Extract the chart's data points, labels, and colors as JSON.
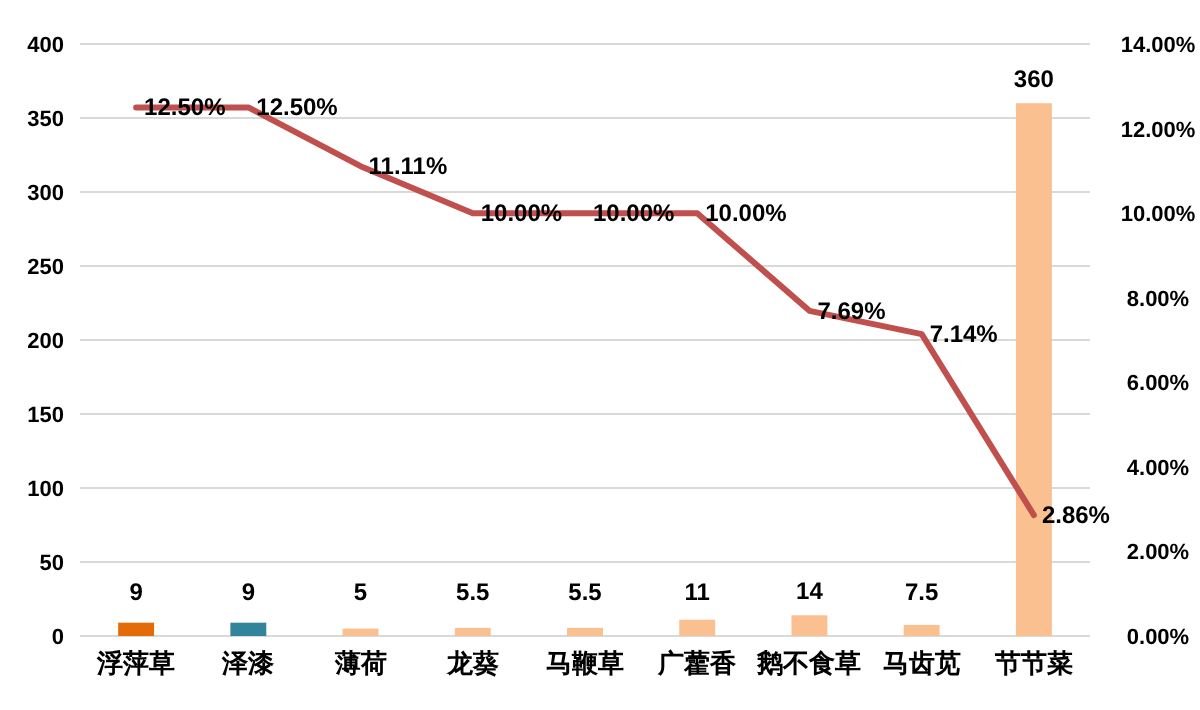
{
  "chart_data": {
    "type": "bar",
    "categories": [
      "浮萍草",
      "泽漆",
      "薄荷",
      "龙葵",
      "马鞭草",
      "广藿香",
      "鹅不食草",
      "马齿苋",
      "节节菜"
    ],
    "series": [
      {
        "values": [
          9,
          9,
          5,
          5.5,
          5.5,
          11,
          14,
          7.5,
          360
        ],
        "colors": [
          "#e36c09",
          "#31849b",
          "#fac090",
          "#fac090",
          "#fac090",
          "#fac090",
          "#fac090",
          "#fac090",
          "#fac090"
        ],
        "data_labels": true
      },
      {
        "type": "line",
        "axis": "y2",
        "color": "#c0504d",
        "values": [
          12.5,
          12.5,
          11.11,
          10,
          10,
          10,
          7.69,
          7.14,
          2.86
        ],
        "value_labels": [
          "12.50%",
          "12.50%",
          "11.11%",
          "10.00%",
          "10.00%",
          "10.00%",
          "7.69%",
          "7.14%",
          "2.86%"
        ]
      }
    ],
    "ylim": [
      0,
      400
    ],
    "yticks": [
      0,
      50,
      100,
      150,
      200,
      250,
      300,
      350,
      400
    ],
    "y2lim": [
      0,
      14
    ],
    "y2ticks": [
      {
        "value": 0,
        "label": "0.00%"
      },
      {
        "value": 2,
        "label": "2.00%"
      },
      {
        "value": 4,
        "label": "4.00%"
      },
      {
        "value": 6,
        "label": "6.00%"
      },
      {
        "value": 8,
        "label": "8.00%"
      },
      {
        "value": 10,
        "label": "10.00%"
      },
      {
        "value": 12,
        "label": "12.00%"
      },
      {
        "value": 14,
        "label": "14.00%"
      }
    ],
    "grid": "y",
    "marker": "none",
    "line_style": "solid"
  }
}
